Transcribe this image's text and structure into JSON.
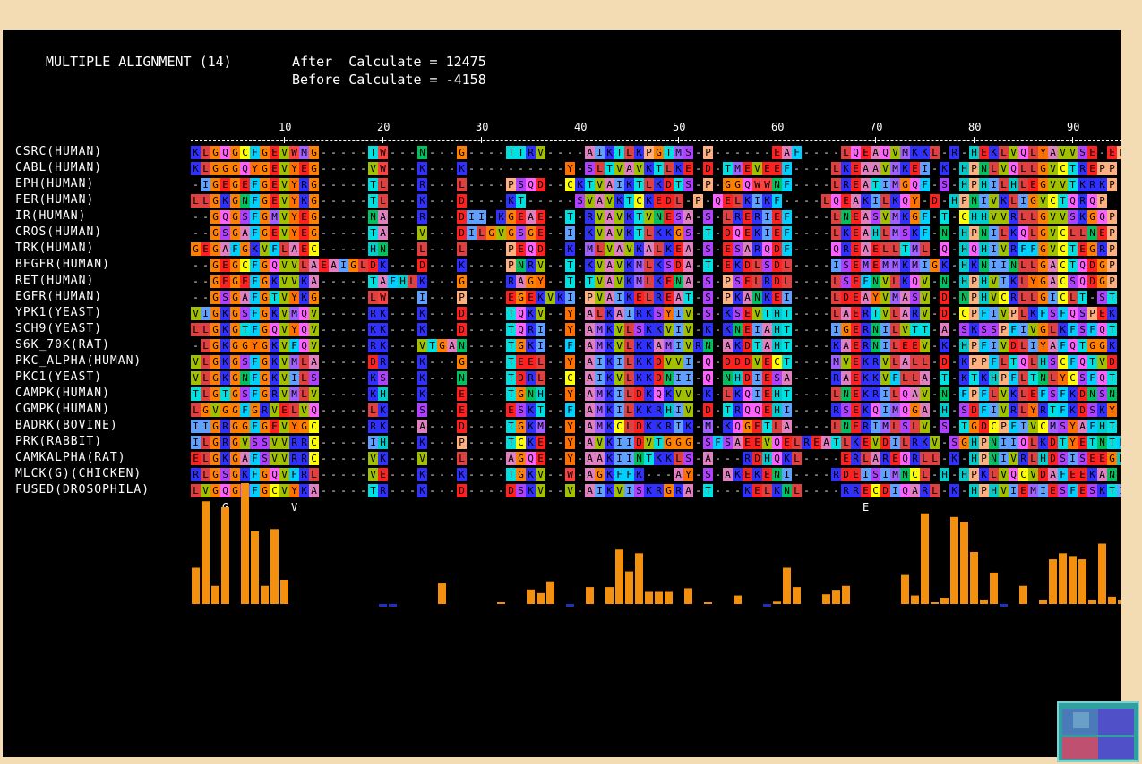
{
  "header": {
    "title": "MULTIPLE ALIGNMENT (14)",
    "after_label": "After  Calculate = 12475",
    "before_label": "Before Calculate = -4158"
  },
  "ruler": {
    "labels": [
      "10",
      "20",
      "30",
      "40",
      "50",
      "60",
      "70",
      "80",
      "90"
    ]
  },
  "sequences": [
    {
      "name": "CSRC(HUMAN)",
      "seq": "KLGQGCFGEVWMG-----TW---N---G----TTRV----AIKTLKPGTMS-P------EAF----LQEAQVMKKL-R-HEKLVQLYAVVSE-EP"
    },
    {
      "name": "CABL(HUMAN)",
      "seq": "KLGGGQYGEVYEG-----VW---K---K----------Y-SLTVAVKTLKE-D-TMEVEEF----LKEAAVMKEI-K-HPNLVQLLGVCTREPP"
    },
    {
      "name": "EPH(HUMAN)",
      "seq": "-IGEGEFGEVYRG-----TL---R---L----PSQD--CKTVAIKTLKDTS-P-GGQWWNF----LREATIMGQF-S-HPHILHLEGVVTKRKP"
    },
    {
      "name": "FER(HUMAN)",
      "seq": "LLGKGNFGEVYKG-----TL---K---D----KT-----SVAVKTCKEDL-P-QELKIKF----LQEAKILKQY-D-HPNIVKLIGVCTQRQP"
    },
    {
      "name": "IR(HUMAN)",
      "seq": "--GQGSFGMVYEG-----NA---R---DII-KGEAE--T-RVAVKTVNESA-S-LRERIEF----LNEASVMKGF-T-CHHVVRLLGVVSKGQP"
    },
    {
      "name": "CROS(HUMAN)",
      "seq": "--GSGAFGEVYEG-----TA---V---DILGVGSGE--I-KVAVKTLKKGS-T-DQEKIEF----LKEAHLMSKF-N-HPNILKQLGVCLLNEP"
    },
    {
      "name": "TRK(HUMAN)",
      "seq": "GEGAFGKVFLAEC-----HN---L---L----PEQD--K-MLVAVKALKEA-S-ESARQDF----QREAELLTML-Q-HQHIVRFFGVCTEGRP"
    },
    {
      "name": "BFGFR(HUMAN)",
      "seq": "--GEGCFGQVVLAEAIGLDK---D---K----PNRV--T-KVAVKMLKSDA-T-EKDLSDL----ISEMEMMKMIGK-HKNIINLLGACTQDGP"
    },
    {
      "name": "RET(HUMAN)",
      "seq": "--GEGEFGKVVKA-----TAFHLK---G----RAGY--T-TVAVKMLKENA-S-PSELRDL----LSEFNVLKQV-N-HPHVIKLYGACSQDGP"
    },
    {
      "name": "EGFR(HUMAN)",
      "seq": "--GSGAFGTVYKG-----LW---I---P----EGEKVKI-PVAIKELREAT-S-PKANKEI----LDEAYVMASV-D-NPHVCRLLGICLT-ST"
    },
    {
      "name": "YPK1(YEAST)",
      "seq": "VIGKGSFGKVMQV-----RK---K---D----TQKV--Y-ALKAIRKSYIV-S-KSEVTHT----LAERTVLARV-D-CPFIVPLKFSFQSPEK"
    },
    {
      "name": "SCH9(YEAST)",
      "seq": "LLGKGTFGQVYQV-----KK---K---D----TQRI--Y-AMKVLSKKVIV-K-KNEIAHT----IGERNILVTT-A-SKSSPFIVGLKFSFQT"
    },
    {
      "name": "S6K_70K(RAT)",
      "seq": "-LGKGGYGKVFQV-----RK---VTGAN----TGKI--F-AMKVLKKAMIVRN-AKDTAHT----KAERNILEEV-K-HPFIVDLIYAFQTGGK"
    },
    {
      "name": "PKC_ALPHA(HUMAN)",
      "seq": "VLGKGSFGKVMLA-----DR---K---G----TEEL--Y-AIKILKKDVVI-Q-DDDVECT----MVEKRVLALL-D-KPPFLTQLHSCFQTVD"
    },
    {
      "name": "PKC1(YEAST)",
      "seq": "VLGKGNFGKVILS-----KS---K---N----TDRL--C-AIKVLKKDNII-Q-NHDIESA----RAEKKVFLLA-T-KTKHPFLTNLYCSFQT"
    },
    {
      "name": "CAMPK(HUMAN)",
      "seq": "TLGTGSFGRVMLV-----KH---K---E----TGNH--Y-AMKILDKQKVV-K-LKQIEHT----LNEKRILQAV-N-FPFLVKLEFSFKDNSN"
    },
    {
      "name": "CGMPK(HUMAN)",
      "seq": "LGVGGFGRVELVQ-----LK---S---E----ESKT--F-AMKILKKRHIV-D-TRQQEHI----RSEKQIMQGA-H-SDFIVRLYRTFKDSKY"
    },
    {
      "name": "BADRK(BOVINE)",
      "seq": "IIGRGGFGEVYGC-----RK---A---D----TGKM--Y-AMKCLDKKRIK-M-KQGETLA----LNERIMLSLV-S-TGDCPFIVCMSYAFHT"
    },
    {
      "name": "PRK(RABBIT)",
      "seq": "ILGRGVSSVVRRC-----IH---K---P----TCKE--Y-AVKIIDVTGGG-SFSAEEVQELREATLKEVDILRKV-SGHPNIIQLKDTYETNTF"
    },
    {
      "name": "CAMKALPHA(RAT)",
      "seq": "ELGKGAFSVVRRC-----VK---V---L----AGQE--Y-AAKIINTKKLS-A---RDHQKL----ERLAREQRLL-K-HPNIVRLHDSISEEGH"
    },
    {
      "name": "MLCK(G)(CHICKEN)",
      "seq": "RLGSGKFGQVFRL-----VE---K---K----TGKV--W-AGKFFK---AY-S-AKEKENI----RDEISIMNCL-H-HPKLVQCVDAFEEKAN"
    },
    {
      "name": "FUSED(DROSOPHILA)",
      "seq": "LVGQGSFGCVYKA-----TR---K---D----DSKV--V-AIKVISKRGRA-T---KELKNL----RRECDIQARL-K-HPHVIEMIESFESKTI"
    }
  ],
  "consensus": [
    {
      "pos": 3,
      "label": "G"
    },
    {
      "pos": 5,
      "label": "G"
    },
    {
      "pos": 10,
      "label": "V"
    },
    {
      "pos": 68,
      "label": "E"
    }
  ],
  "histogram": {
    "color": "#f39010",
    "negative_color": "#2030c0",
    "values": [
      0.3,
      0.85,
      0.15,
      0.8,
      0.0,
      1.0,
      0.6,
      0.15,
      0.62,
      0.2,
      0,
      0,
      0,
      0,
      0,
      0,
      0,
      0,
      0,
      -0.01,
      -0.01,
      0,
      0,
      0,
      0,
      0.17,
      0,
      0,
      0,
      0,
      0,
      0.01,
      0,
      0,
      0.12,
      0.09,
      0.18,
      0,
      -0.01,
      0,
      0.14,
      0,
      0.14,
      0.45,
      0.27,
      0.42,
      0.1,
      0.1,
      0.1,
      0,
      0.13,
      0,
      0.01,
      0,
      0,
      0.07,
      0,
      0,
      -0.01,
      0.02,
      0.3,
      0.14,
      0,
      0,
      0.08,
      0.11,
      0.15,
      0,
      0,
      0,
      0,
      0,
      0.24,
      0.07,
      0.75,
      0.01,
      0.05,
      0.72,
      0.68,
      0.43,
      0.03,
      0.26,
      -0.01,
      0,
      0.15,
      0,
      0.03,
      0.37,
      0.42,
      0.39,
      0.37,
      0.03,
      0.5,
      0.06,
      0.03,
      -0.01,
      0.1,
      0.16,
      -0.01,
      0.07,
      0.03,
      0.03
    ]
  },
  "residue_colors": {
    "K": "#3030ff",
    "R": "#3030ff",
    "H": "#00cccc",
    "D": "#ff2020",
    "E": "#ff2020",
    "G": "#ff8000",
    "P": "#ffb080",
    "S": "#b040ff",
    "T": "#00e0e0",
    "N": "#00c060",
    "Q": "#ff60ff",
    "C": "#ffff00",
    "A": "#e080c0",
    "V": "#a0c000",
    "L": "#e04040",
    "I": "#60a0ff",
    "M": "#a060ff",
    "F": "#00d0ff",
    "Y": "#ff7000",
    "W": "#ff4040"
  },
  "overview_icon": "alignment-overview-icon"
}
